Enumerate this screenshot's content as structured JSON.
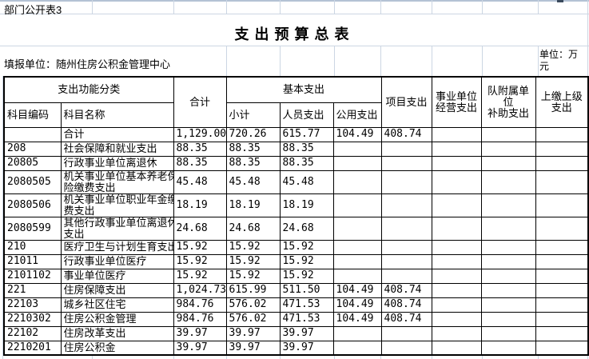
{
  "page": {
    "sheet_label": "部门公开表3",
    "title": "支出预算总表",
    "reporting_unit": "填报单位：随州住房公积金管理中心",
    "unit_note": "单位：万元"
  },
  "colors": {
    "gridline": "#ccd6e3",
    "table_border": "#000000",
    "background": "#ffffff"
  },
  "table": {
    "header": {
      "func_class": "支出功能分类",
      "subject_code": "科目编码",
      "subject_name": "科目名称",
      "total": "合计",
      "basic": "基本支出",
      "subtotal": "小计",
      "personnel": "人员支出",
      "public": "公用支出",
      "project": "项目支出",
      "operating": "事业单位\n经营支出",
      "subsidy": "队附属单位\n补助支出",
      "upper": "上缴上级\n支出"
    },
    "rows": [
      [
        "",
        "合计",
        "1,129.00",
        "720.26",
        "615.77",
        "104.49",
        "408.74",
        "",
        "",
        ""
      ],
      [
        "208",
        "社会保障和就业支出",
        "88.35",
        "88.35",
        "88.35",
        "",
        "",
        "",
        "",
        ""
      ],
      [
        "20805",
        "行政事业单位离退休",
        "88.35",
        "88.35",
        "88.35",
        "",
        "",
        "",
        "",
        ""
      ],
      [
        "2080505",
        "机关事业单位基本养老保\n险缴费支出",
        "45.48",
        "45.48",
        "45.48",
        "",
        "",
        "",
        "",
        ""
      ],
      [
        "2080506",
        "机关事业单位职业年金缴\n费支出",
        "18.19",
        "18.19",
        "18.19",
        "",
        "",
        "",
        "",
        ""
      ],
      [
        "2080599",
        "其他行政事业单位离退休\n支出",
        "24.68",
        "24.68",
        "24.68",
        "",
        "",
        "",
        "",
        ""
      ],
      [
        "210",
        "医疗卫生与计划生育支出",
        "15.92",
        "15.92",
        "15.92",
        "",
        "",
        "",
        "",
        ""
      ],
      [
        "21011",
        "行政事业单位医疗",
        "15.92",
        "15.92",
        "15.92",
        "",
        "",
        "",
        "",
        ""
      ],
      [
        "2101102",
        "事业单位医疗",
        "15.92",
        "15.92",
        "15.92",
        "",
        "",
        "",
        "",
        ""
      ],
      [
        "221",
        "住房保障支出",
        "1,024.73",
        "615.99",
        "511.50",
        "104.49",
        "408.74",
        "",
        "",
        ""
      ],
      [
        "22103",
        "城乡社区住宅",
        "984.76",
        "576.02",
        "471.53",
        "104.49",
        "408.74",
        "",
        "",
        ""
      ],
      [
        "2210302",
        "住房公积金管理",
        "984.76",
        "576.02",
        "471.53",
        "104.49",
        "408.74",
        "",
        "",
        ""
      ],
      [
        "22102",
        "住房改革支出",
        "39.97",
        "39.97",
        "39.97",
        "",
        "",
        "",
        "",
        ""
      ],
      [
        "2210201",
        "住房公积金",
        "39.97",
        "39.97",
        "39.97",
        "",
        "",
        "",
        "",
        ""
      ]
    ]
  }
}
